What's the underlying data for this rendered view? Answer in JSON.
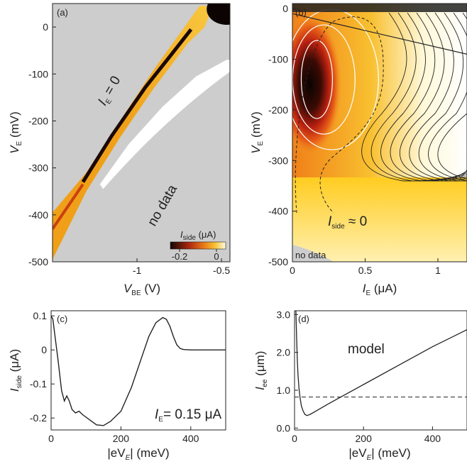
{
  "colors": {
    "no_data": "#cdcdcd",
    "map_low": "#1a0a05",
    "map_mid": "#c83010",
    "map_high": "#f0a020",
    "map_zero": "#fff2a0",
    "white": "#ffffff",
    "ink": "#222222"
  },
  "chart_data": [
    {
      "panel": "(a)",
      "type": "heatmap",
      "xlabel": {
        "main": "V",
        "sub": "BE",
        "unit": " (V)"
      },
      "ylabel": {
        "main": "V",
        "sub": "E",
        "unit": " (mV)"
      },
      "xlim": [
        -1.5,
        -0.45
      ],
      "ylim": [
        -500,
        50
      ],
      "xticks": [
        {
          "v": -1,
          "t": "-1"
        },
        {
          "v": -0.5,
          "t": "-0.5"
        }
      ],
      "yticks": [
        {
          "v": 0,
          "t": "0"
        },
        {
          "v": -100,
          "t": "-100"
        },
        {
          "v": -200,
          "t": "-200"
        },
        {
          "v": -300,
          "t": "-300"
        },
        {
          "v": -400,
          "t": "-400"
        },
        {
          "v": -500,
          "t": "-500"
        }
      ],
      "annotations": [
        {
          "main": "I",
          "sub": "E",
          "rest": " = 0"
        },
        {
          "text": "no data"
        }
      ],
      "colorbar": {
        "label_main": "I",
        "label_sub": "side",
        "label_unit": " (μA)",
        "ticks": [
          {
            "v": -0.2,
            "t": "-0.2"
          },
          {
            "v": 0,
            "t": "0"
          }
        ],
        "range": [
          -0.25,
          0.05
        ]
      },
      "band_edges": {
        "upper_left": [
          [
            -1.5,
            -395
          ],
          [
            -1.3,
            -310
          ],
          [
            -1.1,
            -200
          ],
          [
            -0.9,
            -90
          ],
          [
            -0.7,
            10
          ],
          [
            -0.63,
            45
          ]
        ],
        "lower_right": [
          [
            -1.5,
            -495
          ],
          [
            -1.3,
            -350
          ],
          [
            -1.1,
            -235
          ],
          [
            -0.9,
            -130
          ],
          [
            -0.7,
            -35
          ],
          [
            -0.6,
            0
          ],
          [
            -0.55,
            45
          ]
        ]
      },
      "white_region": [
        [
          -1.22,
          -335
        ],
        [
          -1.05,
          -250
        ],
        [
          -0.85,
          -170
        ],
        [
          -0.65,
          -105
        ],
        [
          -0.47,
          -70
        ]
      ]
    },
    {
      "panel": "(b)",
      "type": "heatmap",
      "xlabel": {
        "main": "I",
        "sub": "E",
        "unit": " (μA)"
      },
      "ylabel": {
        "main": "V",
        "sub": "E",
        "unit": " (mV)"
      },
      "xlim": [
        0,
        1.2
      ],
      "ylim": [
        -500,
        10
      ],
      "xticks": [
        {
          "v": 0,
          "t": "0"
        },
        {
          "v": 0.5,
          "t": "0.5"
        },
        {
          "v": 1,
          "t": "1"
        }
      ],
      "yticks": [
        {
          "v": 0,
          "t": "0"
        },
        {
          "v": -100,
          "t": "-100"
        },
        {
          "v": -200,
          "t": "-200"
        },
        {
          "v": -300,
          "t": "-300"
        },
        {
          "v": -400,
          "t": "-400"
        },
        {
          "v": -500,
          "t": "-500"
        }
      ],
      "annotations": [
        {
          "main": "I",
          "sub": "side",
          "rest": " ≈ 0"
        },
        {
          "text": "no data"
        }
      ],
      "dark_core": {
        "center": [
          0.12,
          -150
        ],
        "radius": [
          0.1,
          75
        ]
      },
      "straight_line": [
        [
          0.0,
          -10
        ],
        [
          1.2,
          -90
        ]
      ]
    },
    {
      "panel": "(c)",
      "type": "line",
      "xlabel": {
        "main": "|eV",
        "sub": "E",
        "unit": "| (meV)"
      },
      "ylabel": {
        "main": "I",
        "sub": "side",
        "unit": " (μA)"
      },
      "xlim": [
        0,
        500
      ],
      "ylim": [
        -0.235,
        0.115
      ],
      "xticks": [
        {
          "v": 0,
          "t": "0"
        },
        {
          "v": 200,
          "t": "200"
        },
        {
          "v": 400,
          "t": "400"
        }
      ],
      "yticks": [
        {
          "v": 0.1,
          "t": "0.1"
        },
        {
          "v": 0,
          "t": "0"
        },
        {
          "v": -0.1,
          "t": "-0.1"
        },
        {
          "v": -0.2,
          "t": "-0.2"
        }
      ],
      "annotation": {
        "main": "I",
        "sub": "E",
        "rest": "= 0.15 μA"
      },
      "series": [
        {
          "x": [
            0,
            5,
            10,
            20,
            30,
            38,
            45,
            52,
            60,
            70,
            80,
            90,
            110,
            130,
            150,
            170,
            200,
            230,
            260,
            280,
            300,
            320,
            330,
            340,
            350,
            360,
            370,
            380,
            400,
            450,
            500
          ],
          "y": [
            0.1,
            0.09,
            0.05,
            -0.03,
            -0.12,
            -0.15,
            -0.135,
            -0.15,
            -0.175,
            -0.185,
            -0.18,
            -0.19,
            -0.205,
            -0.22,
            -0.222,
            -0.21,
            -0.18,
            -0.11,
            -0.02,
            0.04,
            0.08,
            0.095,
            0.09,
            0.07,
            0.04,
            0.015,
            0.004,
            0.001,
            0.0,
            0.0,
            0.0
          ]
        }
      ]
    },
    {
      "panel": "(d)",
      "type": "line",
      "xlabel": {
        "main": "|eV",
        "sub": "E",
        "unit": "| (meV)"
      },
      "ylabel": {
        "main": "l",
        "sub": "ee",
        "unit": " (μm)"
      },
      "xlim": [
        0,
        500
      ],
      "ylim": [
        -0.05,
        3.1
      ],
      "xticks": [
        {
          "v": 0,
          "t": "0"
        },
        {
          "v": 200,
          "t": "200"
        },
        {
          "v": 400,
          "t": "400"
        }
      ],
      "yticks": [
        {
          "v": 3,
          "t": "3.0"
        },
        {
          "v": 2,
          "t": "2.0"
        },
        {
          "v": 1,
          "t": "1.0"
        },
        {
          "v": 0,
          "t": "0.0"
        }
      ],
      "annotation": {
        "text": "model"
      },
      "series": [
        {
          "x": [
            4,
            6,
            8,
            10,
            13,
            16,
            20,
            25,
            30,
            36,
            45,
            60,
            100,
            200,
            300,
            400,
            500
          ],
          "y": [
            3.1,
            2.4,
            1.8,
            1.4,
            1.05,
            0.8,
            0.58,
            0.45,
            0.36,
            0.33,
            0.36,
            0.44,
            0.65,
            1.15,
            1.65,
            2.15,
            2.6
          ]
        },
        {
          "x": [
            0,
            500
          ],
          "y": [
            0.82,
            0.82
          ],
          "dashed": true
        }
      ]
    }
  ]
}
